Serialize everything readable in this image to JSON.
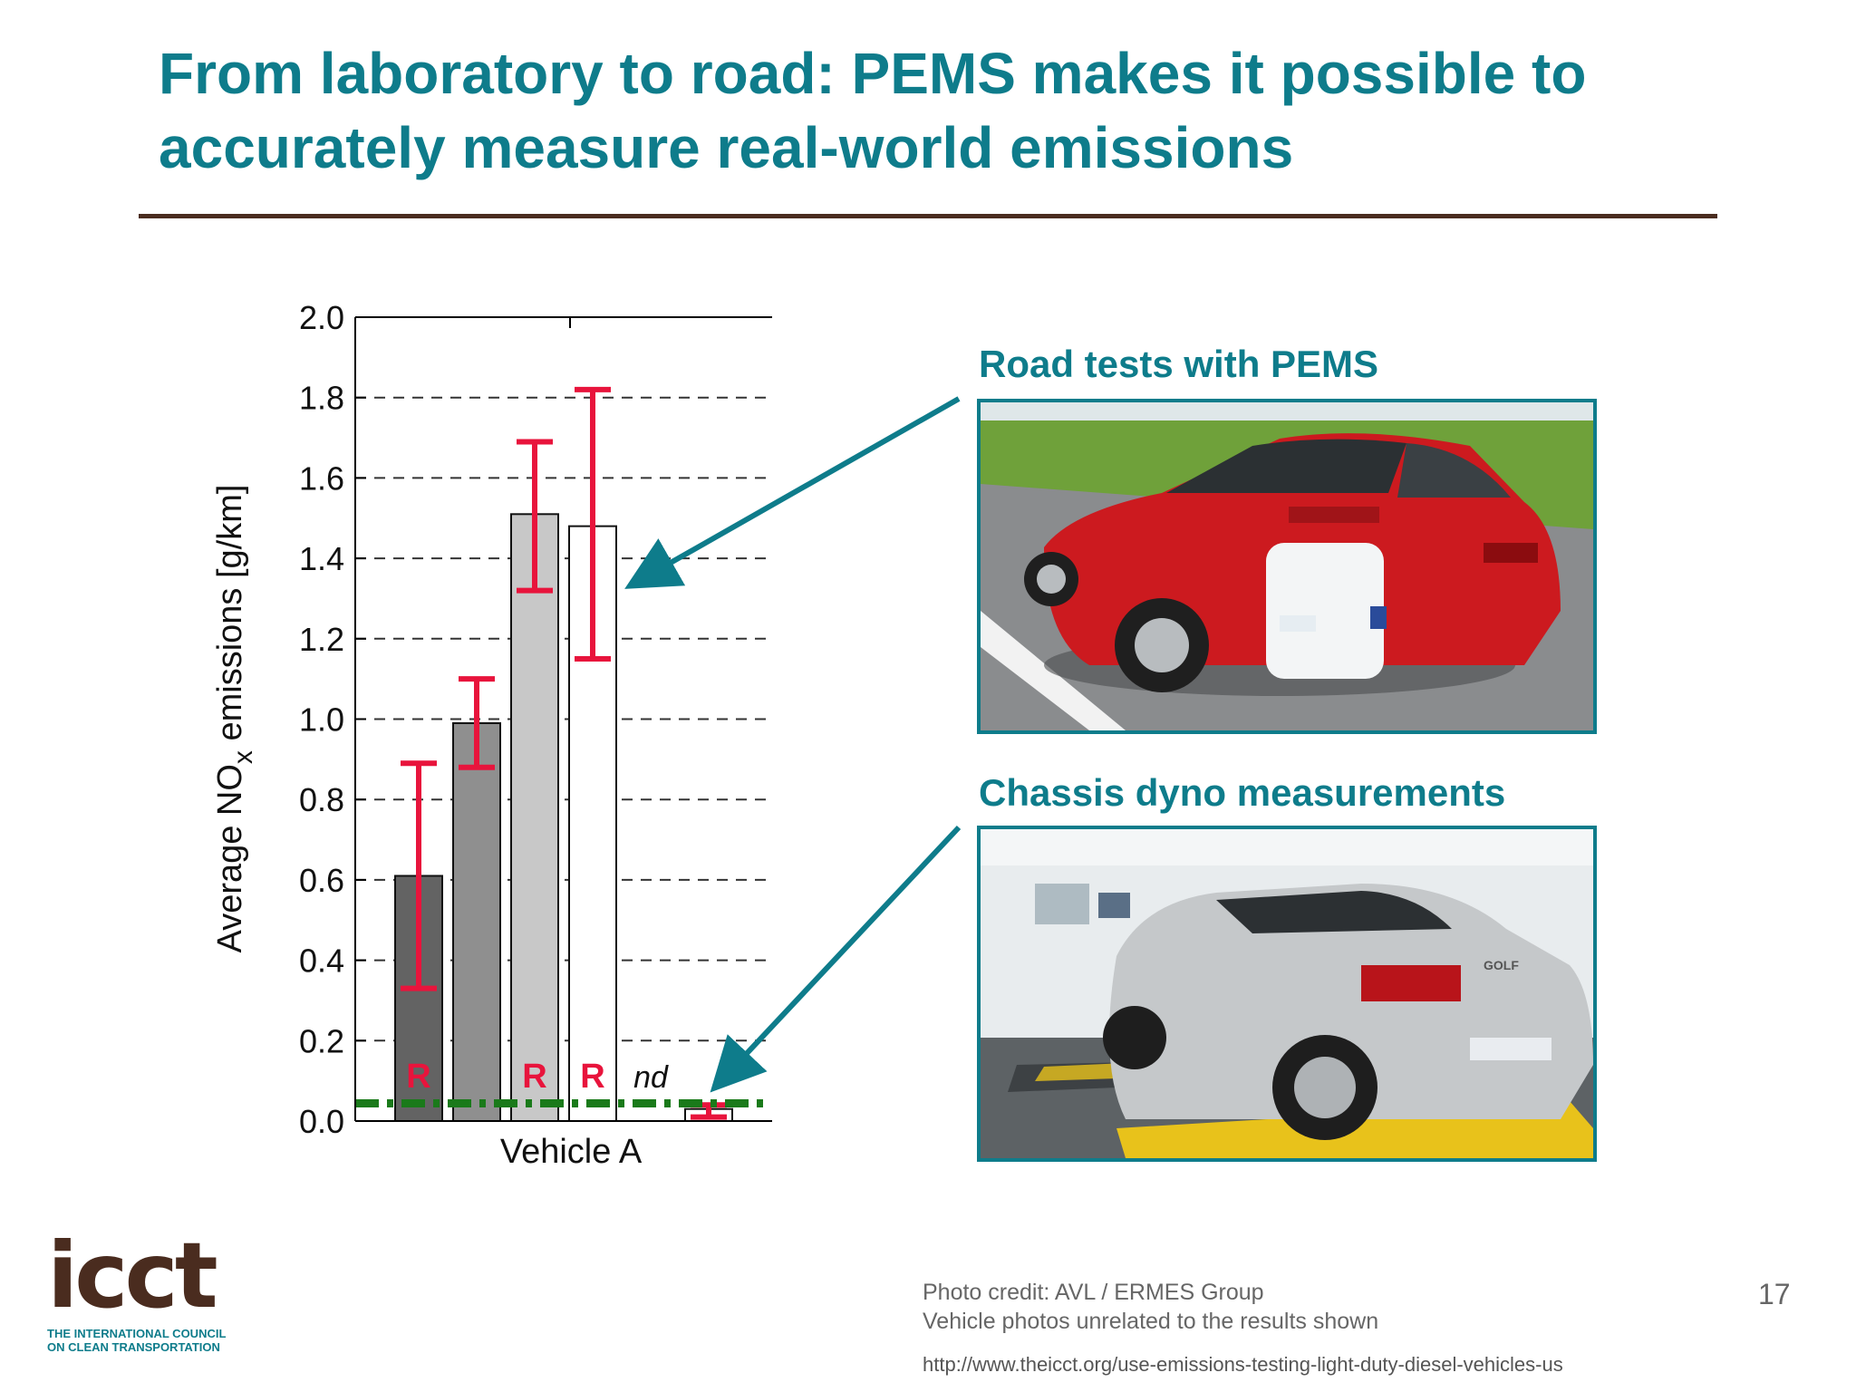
{
  "slide": {
    "title": "From laboratory to road: PEMS makes it possible to accurately measure real-world emissions",
    "page_number": "17",
    "photo_credit_line1": "Photo credit: AVL / ERMES Group",
    "photo_credit_line2": "Vehicle photos unrelated to the results shown",
    "url": "http://www.theicct.org/use-emissions-testing-light-duty-diesel-vehicles-us",
    "accent_color": "#0e7c8b",
    "rule_color": "#4a2c1f"
  },
  "logo": {
    "word": "icct",
    "subtitle_line1": "THE INTERNATIONAL COUNCIL",
    "subtitle_line2": "ON CLEAN TRANSPORTATION"
  },
  "photos": {
    "road_label": "Road tests with PEMS",
    "dyno_label": "Chassis dyno measurements",
    "dyno_car_badge": "GOLF"
  },
  "chart_data": {
    "type": "bar",
    "xlabel": "Vehicle A",
    "ylabel_prefix": "Average NO",
    "ylabel_subscript": "x",
    "ylabel_suffix": " emissions [g/km]",
    "ylim": [
      0,
      2.0
    ],
    "yticks": [
      "0.0",
      "0.2",
      "0.4",
      "0.6",
      "0.8",
      "1.0",
      "1.2",
      "1.4",
      "1.6",
      "1.8",
      "2.0"
    ],
    "grid": "dashed horizontal",
    "bars": [
      {
        "value": 0.61,
        "err_low": 0.33,
        "err_high": 0.89,
        "fill": "#636363",
        "label": "R"
      },
      {
        "value": 0.99,
        "err_low": 0.88,
        "err_high": 1.1,
        "fill": "#8f8f8f",
        "label": ""
      },
      {
        "value": 1.51,
        "err_low": 1.32,
        "err_high": 1.69,
        "fill": "#c8c8c8",
        "label": "R"
      },
      {
        "value": 1.48,
        "err_low": 1.15,
        "err_high": 1.82,
        "fill": "#ffffff",
        "label": "R"
      },
      {
        "value": null,
        "err_low": null,
        "err_high": null,
        "fill": "none",
        "label": "nd"
      },
      {
        "value": 0.03,
        "err_low": 0.01,
        "err_high": 0.04,
        "fill": "#ffffff",
        "label": ""
      }
    ],
    "reference_line": {
      "value": 0.044,
      "color": "#1a7a1a",
      "style": "dash-dot"
    },
    "error_bar_color": "#e8143c",
    "label_color": "#e8143c"
  }
}
